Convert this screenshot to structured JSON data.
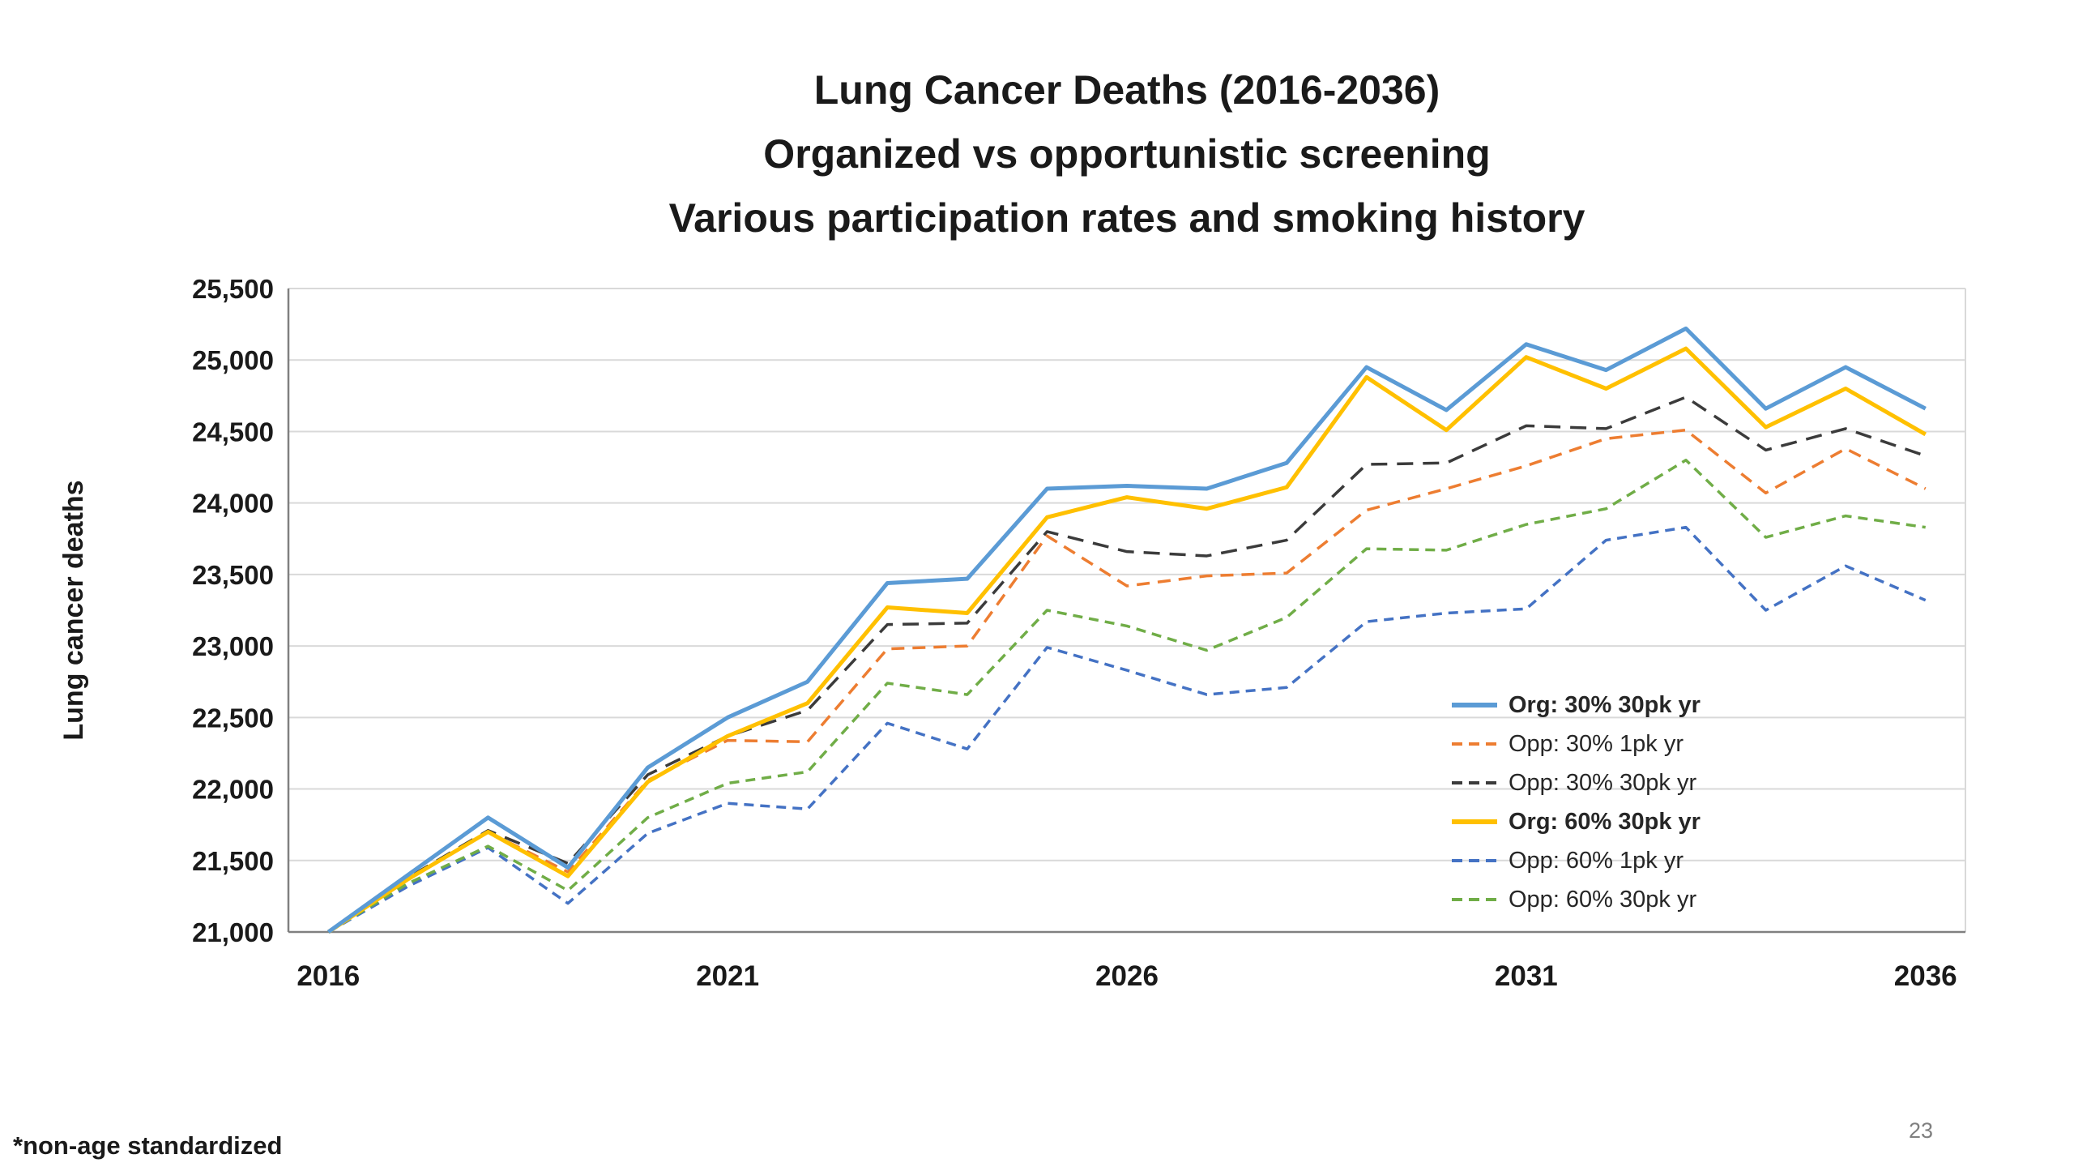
{
  "title": {
    "line1": "Lung Cancer Deaths (2016-2036)",
    "line2": "Organized vs opportunistic screening",
    "line3": "Various participation rates and smoking history"
  },
  "footnote": "*non-age standardized",
  "page_number": "23",
  "chart_data": {
    "type": "line",
    "title": "Lung Cancer Deaths (2016-2036) - Organized vs opportunistic screening - Various participation rates and smoking history",
    "xlabel": "",
    "ylabel": "Lung cancer deaths",
    "ylim": [
      21000,
      25500
    ],
    "ytick_step": 500,
    "grid": true,
    "legend_position": "inside-right",
    "gridline_color": "#D9D9D9",
    "axis_color": "#808080",
    "x": [
      2016,
      2017,
      2018,
      2019,
      2020,
      2021,
      2022,
      2023,
      2024,
      2025,
      2026,
      2027,
      2028,
      2029,
      2030,
      2031,
      2032,
      2033,
      2034,
      2035,
      2036
    ],
    "xticks": [
      2016,
      2021,
      2026,
      2031,
      2036
    ],
    "series": [
      {
        "name": "Org: 30% 30pk yr",
        "color": "#5B9BD5",
        "style": "solid",
        "dash": "",
        "bold": true,
        "values": [
          21000,
          21400,
          21800,
          21450,
          22150,
          22500,
          22750,
          23440,
          23470,
          24100,
          24120,
          24100,
          24280,
          24950,
          24650,
          25110,
          24930,
          25220,
          24660,
          24950,
          24660
        ]
      },
      {
        "name": "Opp: 30% 1pk yr",
        "color": "#ED7D31",
        "style": "dashed",
        "dash": "16 10",
        "bold": false,
        "values": [
          21000,
          21370,
          21700,
          21420,
          22060,
          22340,
          22330,
          22980,
          23000,
          23770,
          23420,
          23490,
          23510,
          23950,
          24100,
          24260,
          24450,
          24510,
          24070,
          24380,
          24100
        ]
      },
      {
        "name": "Opp: 30% 30pk yr",
        "color": "#3B3B3B",
        "style": "dashed",
        "dash": "20 12",
        "bold": false,
        "values": [
          21000,
          21380,
          21710,
          21480,
          22100,
          22370,
          22550,
          23150,
          23160,
          23800,
          23660,
          23630,
          23740,
          24270,
          24280,
          24540,
          24520,
          24740,
          24370,
          24520,
          24330
        ]
      },
      {
        "name": "Org: 60% 30pk yr",
        "color": "#FFC000",
        "style": "solid",
        "dash": "",
        "bold": true,
        "values": [
          21000,
          21370,
          21700,
          21390,
          22050,
          22370,
          22600,
          23270,
          23230,
          23900,
          24040,
          23960,
          24110,
          24880,
          24510,
          25020,
          24800,
          25080,
          24530,
          24800,
          24480
        ]
      },
      {
        "name": "Opp: 60% 1pk yr",
        "color": "#4472C4",
        "style": "dashed",
        "dash": "12 8",
        "bold": false,
        "values": [
          21000,
          21320,
          21590,
          21200,
          21690,
          21900,
          21860,
          22460,
          22280,
          22990,
          22830,
          22660,
          22710,
          23170,
          23230,
          23260,
          23740,
          23830,
          23250,
          23560,
          23320
        ]
      },
      {
        "name": "Opp: 60% 30pk yr",
        "color": "#70AD47",
        "style": "dashed",
        "dash": "12 8",
        "bold": false,
        "values": [
          21000,
          21340,
          21600,
          21290,
          21800,
          22040,
          22120,
          22740,
          22660,
          23250,
          23140,
          22970,
          23200,
          23680,
          23670,
          23850,
          23960,
          24300,
          23760,
          23910,
          23830
        ]
      }
    ]
  }
}
